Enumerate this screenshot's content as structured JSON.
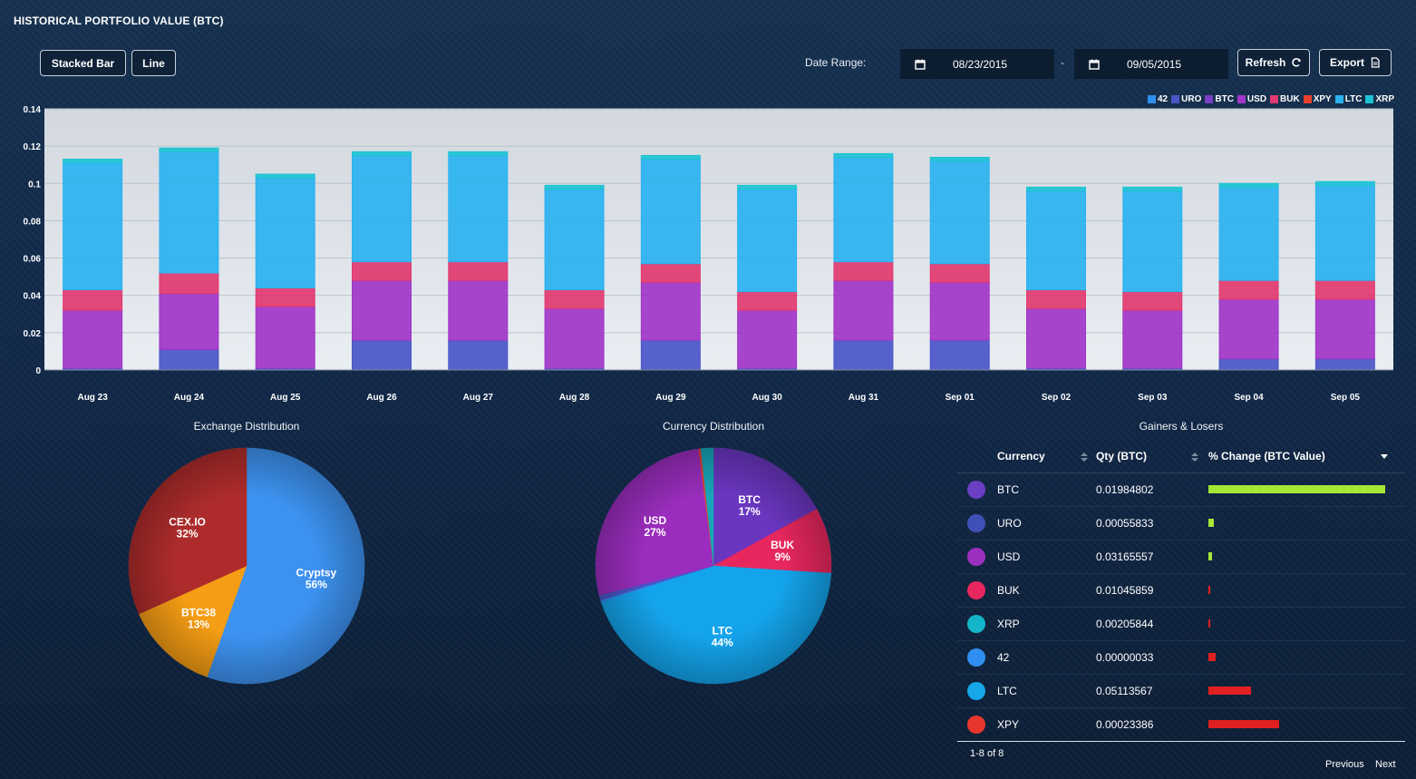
{
  "page": {
    "title": "HISTORICAL PORTFOLIO VALUE (BTC)"
  },
  "toolbar": {
    "stacked_bar_label": "Stacked Bar",
    "line_label": "Line",
    "date_range_label": "Date Range:",
    "start_date": "08/23/2015",
    "end_date": "09/05/2015",
    "separator": "-",
    "refresh_label": "Refresh",
    "export_label": "Export",
    "calendar_icon": "calendar-icon",
    "refresh_icon": "refresh-icon",
    "export_icon": "file-icon"
  },
  "colors": {
    "42": "#2f8ff0",
    "URO": "#4a55c8",
    "BTC": "#7a3fc4",
    "USD": "#a135c8",
    "BUK": "#e23a70",
    "XPY": "#e8412e",
    "LTC": "#2ab2f0",
    "XRP": "#1bc3d4",
    "gain_bar": "#a6e635",
    "loss_bar": "#e02020",
    "plot_bg_top": "#d3d8de",
    "plot_bg_bottom": "#e9eef3"
  },
  "chart_data": [
    {
      "type": "bar",
      "stacked": true,
      "title": "HISTORICAL PORTFOLIO VALUE (BTC)",
      "categories": [
        "Aug 23",
        "Aug 24",
        "Aug 25",
        "Aug 26",
        "Aug 27",
        "Aug 28",
        "Aug 29",
        "Aug 30",
        "Aug 31",
        "Sep 01",
        "Sep 02",
        "Sep 03",
        "Sep 04",
        "Sep 05"
      ],
      "ylim": [
        0,
        0.14
      ],
      "yticks": [
        "0",
        "0.02",
        "0.04",
        "0.06",
        "0.08",
        "0.1",
        "0.12",
        "0.14"
      ],
      "grid": true,
      "legend_position": "top-right",
      "series": [
        {
          "name": "42",
          "values": [
            0,
            0,
            0,
            0,
            0,
            0,
            0,
            0,
            0,
            0,
            0,
            0,
            0,
            0
          ]
        },
        {
          "name": "URO",
          "values": [
            0.001,
            0.011,
            0.001,
            0.016,
            0.016,
            0.001,
            0.016,
            0.001,
            0.016,
            0.016,
            0.001,
            0.001,
            0.006,
            0.006
          ]
        },
        {
          "name": "BTC",
          "values": [
            0,
            0,
            0,
            0,
            0,
            0,
            0,
            0,
            0,
            0,
            0,
            0,
            0,
            0
          ]
        },
        {
          "name": "USD",
          "values": [
            0.031,
            0.03,
            0.033,
            0.032,
            0.032,
            0.032,
            0.031,
            0.031,
            0.032,
            0.031,
            0.032,
            0.031,
            0.032,
            0.032
          ]
        },
        {
          "name": "BUK",
          "values": [
            0.011,
            0.011,
            0.01,
            0.01,
            0.01,
            0.01,
            0.01,
            0.01,
            0.01,
            0.01,
            0.01,
            0.01,
            0.01,
            0.01
          ]
        },
        {
          "name": "XPY",
          "values": [
            0,
            0,
            0,
            0,
            0,
            0,
            0,
            0,
            0,
            0,
            0,
            0,
            0,
            0
          ]
        },
        {
          "name": "LTC",
          "values": [
            0.068,
            0.065,
            0.059,
            0.057,
            0.057,
            0.054,
            0.056,
            0.055,
            0.056,
            0.055,
            0.053,
            0.054,
            0.05,
            0.051
          ]
        },
        {
          "name": "XRP",
          "values": [
            0.002,
            0.002,
            0.002,
            0.002,
            0.002,
            0.002,
            0.002,
            0.002,
            0.002,
            0.002,
            0.002,
            0.002,
            0.002,
            0.002
          ]
        }
      ]
    },
    {
      "type": "pie",
      "title": "Exchange Distribution",
      "slices": [
        {
          "name": "Cryptsy",
          "value": 56,
          "label": "56%",
          "color": "#3d92f0"
        },
        {
          "name": "BTC38",
          "value": 13,
          "label": "13%",
          "color": "#f59d14"
        },
        {
          "name": "CEX.IO",
          "value": 32,
          "label": "32%",
          "color": "#ad2c2b"
        }
      ]
    },
    {
      "type": "pie",
      "title": "Currency Distribution",
      "slices": [
        {
          "name": "BTC",
          "value": 17,
          "label": "17%",
          "color": "#6a36c0",
          "show_label": true
        },
        {
          "name": "BUK",
          "value": 9,
          "label": "9%",
          "color": "#e8275e",
          "show_label": true
        },
        {
          "name": "LTC",
          "value": 44,
          "label": "44%",
          "color": "#14a4ec",
          "show_label": true
        },
        {
          "name": "42",
          "value": 0.3,
          "label": "",
          "color": "#2f8ff0",
          "show_label": false
        },
        {
          "name": "URO",
          "value": 0.7,
          "label": "",
          "color": "#4a55c8",
          "show_label": false
        },
        {
          "name": "USD",
          "value": 27,
          "label": "27%",
          "color": "#9a2dbd",
          "show_label": true
        },
        {
          "name": "XPY",
          "value": 0.3,
          "label": "",
          "color": "#e8412e",
          "show_label": false
        },
        {
          "name": "XRP",
          "value": 1.7,
          "label": "",
          "color": "#17a6b8",
          "show_label": false
        }
      ]
    }
  ],
  "gainers_losers": {
    "title": "Gainers & Losers",
    "headers": {
      "currency": "Currency",
      "qty": "Qty (BTC)",
      "change": "% Change (BTC Value)"
    },
    "rows": [
      {
        "currency": "BTC",
        "qty": "0.01984802",
        "color": "#6a3fc4",
        "change": 1.0,
        "direction": "gain"
      },
      {
        "currency": "URO",
        "qty": "0.00055833",
        "color": "#4150b8",
        "change": 0.03,
        "direction": "gain"
      },
      {
        "currency": "USD",
        "qty": "0.03165557",
        "color": "#9b2fc0",
        "change": 0.02,
        "direction": "gain"
      },
      {
        "currency": "BUK",
        "qty": "0.01045859",
        "color": "#e8275e",
        "change": 0.005,
        "direction": "loss"
      },
      {
        "currency": "XRP",
        "qty": "0.00205844",
        "color": "#14b5c8",
        "change": 0.01,
        "direction": "loss"
      },
      {
        "currency": "42",
        "qty": "0.00000033",
        "color": "#2f8ff0",
        "change": 0.04,
        "direction": "loss"
      },
      {
        "currency": "LTC",
        "qty": "0.05113567",
        "color": "#16a6ea",
        "change": 0.24,
        "direction": "loss"
      },
      {
        "currency": "XPY",
        "qty": "0.00023386",
        "color": "#e8352e",
        "change": 0.4,
        "direction": "loss"
      }
    ],
    "pager": {
      "info": "1-8 of 8",
      "previous": "Previous",
      "next": "Next"
    }
  }
}
